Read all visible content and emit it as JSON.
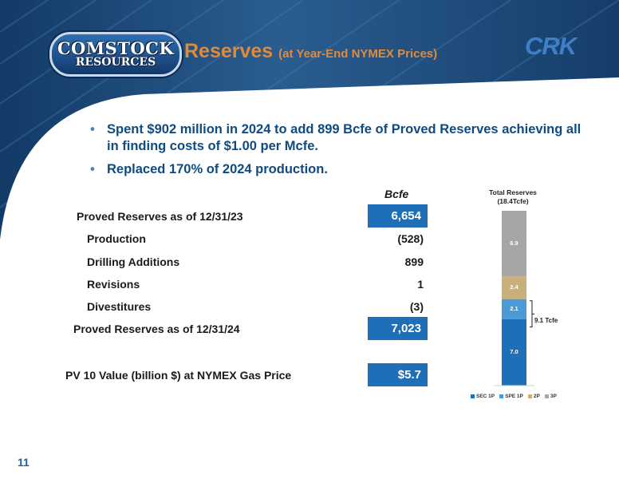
{
  "logo": {
    "line1": "COMSTOCK",
    "line2": "RESOURCES"
  },
  "title": {
    "main": "Reserves",
    "sub": "(at Year-End NYMEX Prices)"
  },
  "brand": "CRK",
  "bullets": [
    "Spent $902 million in 2024 to add 899 Bcfe of Proved Reserves achieving all in finding costs of $1.00 per Mcfe.",
    "Replaced 170% of 2024 production."
  ],
  "table": {
    "header": "Bcfe",
    "rows": [
      {
        "label": "Proved Reserves as of 12/31/23",
        "value": "6,654"
      },
      {
        "label": "Production",
        "value": "(528)"
      },
      {
        "label": "Drilling Additions",
        "value": "899"
      },
      {
        "label": "Revisions",
        "value": "1"
      },
      {
        "label": "Divestitures",
        "value": "(3)"
      },
      {
        "label": "Proved Reserves as of 12/31/24",
        "value": "7,023"
      },
      {
        "label": "PV 10 Value (billion $) at NYMEX Gas Price",
        "value": "$5.7"
      }
    ]
  },
  "chart_data": {
    "type": "bar",
    "stacked": true,
    "title": "Total Reserves",
    "subtitle": "(18.4Tcfe)",
    "categories": [
      ""
    ],
    "series": [
      {
        "name": "SEC 1P",
        "values": [
          7.0
        ],
        "label": "7.0",
        "color": "#1f6fb8"
      },
      {
        "name": "SPE 1P",
        "values": [
          2.1
        ],
        "label": "2.1",
        "color": "#4a9ad6"
      },
      {
        "name": "2P",
        "values": [
          2.4
        ],
        "label": "2.4",
        "color": "#c9b07a"
      },
      {
        "name": "3P",
        "values": [
          6.9
        ],
        "label": "6.9",
        "color": "#a6a6a6"
      }
    ],
    "annotation": "9.1 Tcfe",
    "legend": "bottom"
  },
  "page_number": "11"
}
